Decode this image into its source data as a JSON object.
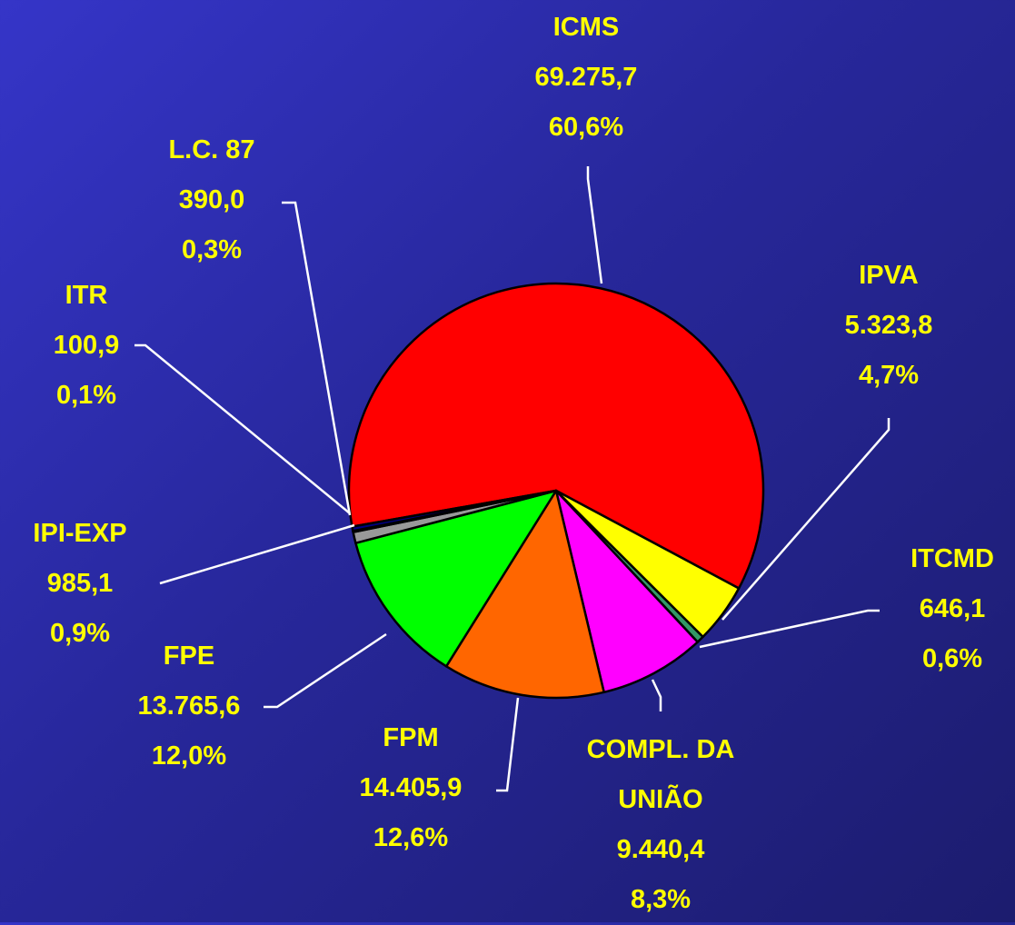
{
  "chart_data": {
    "type": "pie",
    "categories": [
      "ICMS",
      "IPVA",
      "ITCMD",
      "COMPL. DA UNIÃO",
      "FPM",
      "FPE",
      "IPI-EXP",
      "ITR",
      "L.C. 87"
    ],
    "values": [
      69275.7,
      5323.8,
      646.1,
      9440.4,
      14405.9,
      13765.6,
      985.1,
      100.9,
      390.0
    ],
    "value_labels": [
      "69.275,7",
      "5.323,8",
      "646,1",
      "9.440,4",
      "14.405,9",
      "13.765,6",
      "985,1",
      "100,9",
      "390,0"
    ],
    "percents": [
      60.6,
      4.7,
      0.6,
      8.3,
      12.6,
      12.0,
      0.9,
      0.1,
      0.3
    ],
    "percent_labels": [
      "60,6%",
      "4,7%",
      "0,6%",
      "8,3%",
      "12,6%",
      "12,0%",
      "0,9%",
      "0,1%",
      "0,3%"
    ],
    "colors": [
      "#ff0000",
      "#ffff00",
      "#339966",
      "#ff00ff",
      "#ff6600",
      "#00ff00",
      "#999999",
      "#ffffff",
      "#000080"
    ]
  }
}
